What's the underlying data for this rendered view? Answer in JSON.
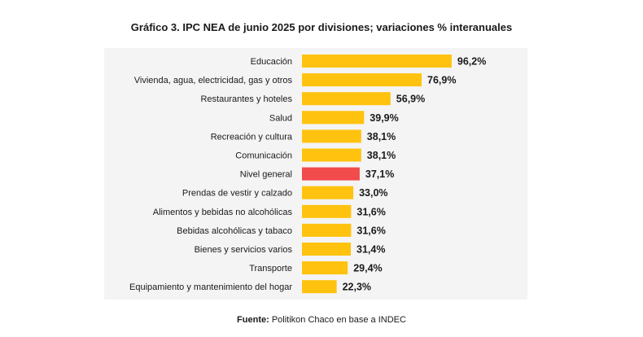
{
  "chart_data": {
    "type": "bar",
    "orientation": "horizontal",
    "title": "Gráfico 3. IPC NEA de junio 2025 por divisiones; variaciones % interanuales",
    "categories": [
      "Educación",
      "Vivienda, agua, electricidad, gas y otros",
      "Restaurantes y hoteles",
      "Salud",
      "Recreación y cultura",
      "Comunicación",
      "Nivel general",
      "Prendas de vestir y calzado",
      "Alimentos y bebidas no alcohólicas",
      "Bebidas alcohólicas y tabaco",
      "Bienes y servicios varios",
      "Transporte",
      "Equipamiento y mantenimiento del hogar"
    ],
    "values": [
      96.2,
      76.9,
      56.9,
      39.9,
      38.1,
      38.1,
      37.1,
      33.0,
      31.6,
      31.6,
      31.4,
      29.4,
      22.3
    ],
    "value_labels": [
      "96,2%",
      "76,9%",
      "56,9%",
      "39,9%",
      "38,1%",
      "38,1%",
      "37,1%",
      "33,0%",
      "31,6%",
      "31,6%",
      "31,4%",
      "29,4%",
      "22,3%"
    ],
    "highlight": "Nivel general",
    "colors": {
      "bar": "#FFC20E",
      "highlight": "#F24B4B",
      "plot_background": "#F4F4F4"
    },
    "xlim": [
      0,
      100
    ],
    "grid": false,
    "legend": "none"
  },
  "footer": {
    "source_label": "Fuente:",
    "source_text": " Politikon Chaco en base a INDEC"
  }
}
